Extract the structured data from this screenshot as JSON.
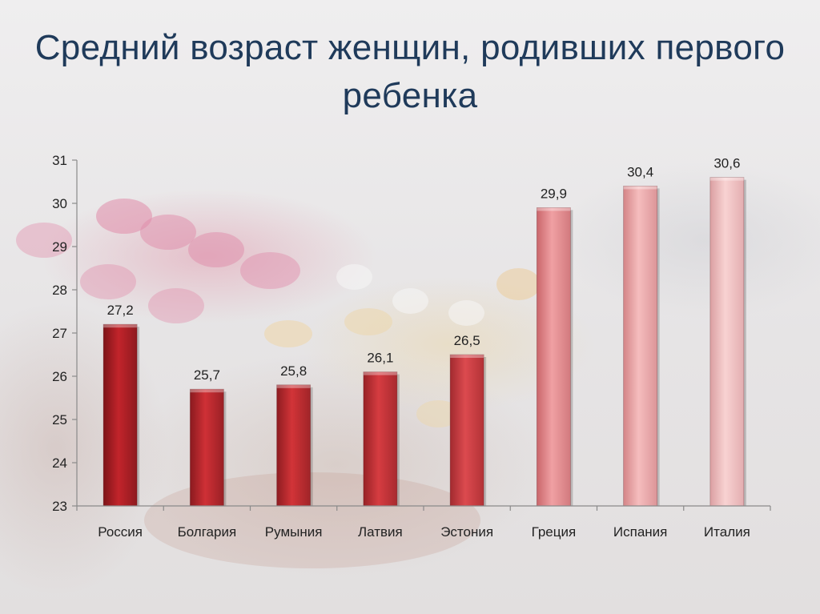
{
  "title": "Средний возраст женщин, родивших первого ребенка",
  "chart_data": {
    "type": "bar",
    "title": "Средний возраст женщин, родивших первого ребенка",
    "categories": [
      "Россия",
      "Болгария",
      "Румыния",
      "Латвия",
      "Эстония",
      "Греция",
      "Испания",
      "Италия"
    ],
    "values": [
      27.2,
      25.7,
      25.8,
      26.1,
      26.5,
      29.9,
      30.4,
      30.6
    ],
    "value_labels": [
      "27,2",
      "25,7",
      "25,8",
      "26,1",
      "26,5",
      "29,9",
      "30,4",
      "30,6"
    ],
    "ylim": [
      23,
      31
    ],
    "yticks": [
      23,
      24,
      25,
      26,
      27,
      28,
      29,
      30,
      31
    ],
    "xlabel": "",
    "ylabel": "",
    "grid": false,
    "legend": "none",
    "bar_colors": [
      [
        "#7d1418",
        "#c2242b",
        "#8e1a1f"
      ],
      [
        "#8a1a1f",
        "#cf3036",
        "#9a2025"
      ],
      [
        "#8e1c21",
        "#d23438",
        "#a02428"
      ],
      [
        "#972226",
        "#d63c41",
        "#a82a2f"
      ],
      [
        "#a22a2f",
        "#dc4a4f",
        "#b33236"
      ],
      [
        "#c9666b",
        "#f0a0a3",
        "#d27a7e"
      ],
      [
        "#d48487",
        "#f5bdbe",
        "#dc9598"
      ],
      [
        "#dba0a2",
        "#f8d2d2",
        "#e3adb0"
      ]
    ],
    "axis_color": "#8a8a8a"
  }
}
